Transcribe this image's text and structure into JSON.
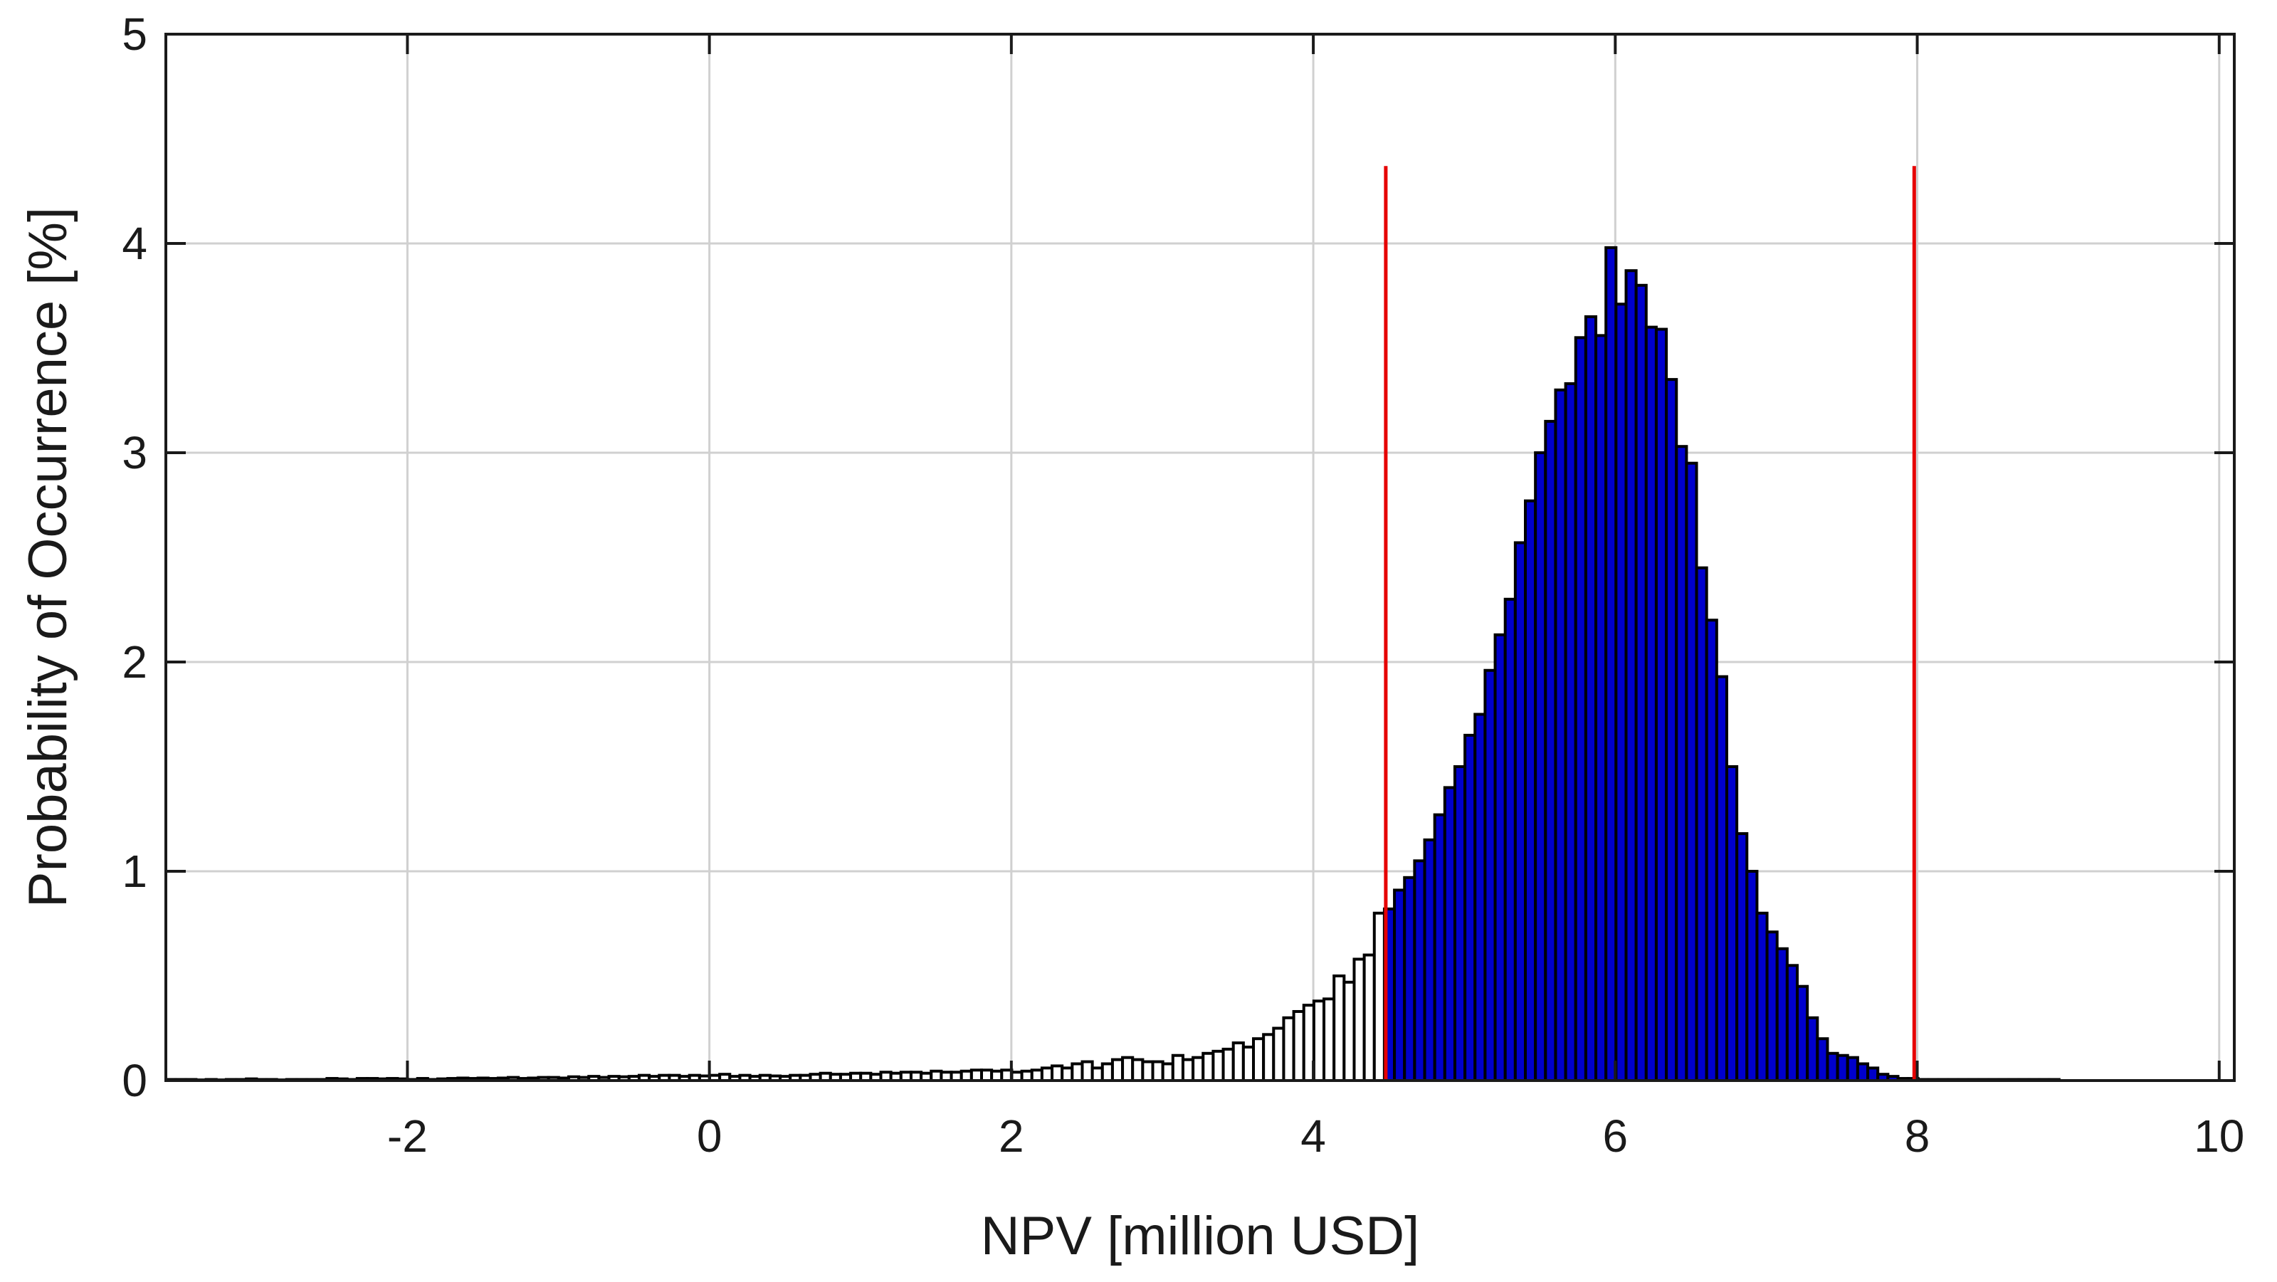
{
  "chart_data": {
    "type": "bar",
    "title": "",
    "xlabel": "NPV [million USD]",
    "ylabel": "Probability of Occurrence [%]",
    "xlim": [
      -3.6,
      10.1
    ],
    "ylim": [
      0,
      5
    ],
    "xticks": [
      "-2",
      "0",
      "2",
      "4",
      "6",
      "8",
      "10"
    ],
    "yticks": [
      "0",
      "1",
      "2",
      "3",
      "4",
      "5"
    ],
    "grid": true,
    "bin_width": 0.0667,
    "bin_start": -3.6,
    "highlight_range": [
      4.48,
      7.98
    ],
    "highlight_color": "#0000cc",
    "base_color": "#ffffff",
    "edge_color": "#000000",
    "marker_color": "#e60000",
    "marker_lines": [
      {
        "x": 4.48,
        "top": 4.37
      },
      {
        "x": 7.98,
        "top": 4.37
      }
    ],
    "values": [
      0.005,
      0.005,
      0.005,
      0.003,
      0.005,
      0.003,
      0.005,
      0.005,
      0.008,
      0.005,
      0.005,
      0.003,
      0.005,
      0.005,
      0.005,
      0.005,
      0.01,
      0.008,
      0.005,
      0.01,
      0.01,
      0.008,
      0.01,
      0.008,
      0.005,
      0.01,
      0.005,
      0.008,
      0.01,
      0.012,
      0.01,
      0.012,
      0.01,
      0.012,
      0.015,
      0.01,
      0.012,
      0.015,
      0.015,
      0.012,
      0.018,
      0.015,
      0.02,
      0.015,
      0.02,
      0.018,
      0.02,
      0.025,
      0.02,
      0.025,
      0.025,
      0.02,
      0.025,
      0.022,
      0.025,
      0.03,
      0.02,
      0.025,
      0.02,
      0.025,
      0.022,
      0.02,
      0.025,
      0.025,
      0.03,
      0.035,
      0.03,
      0.03,
      0.035,
      0.035,
      0.03,
      0.04,
      0.035,
      0.04,
      0.04,
      0.035,
      0.045,
      0.04,
      0.04,
      0.045,
      0.05,
      0.05,
      0.045,
      0.05,
      0.04,
      0.045,
      0.05,
      0.06,
      0.07,
      0.06,
      0.08,
      0.09,
      0.06,
      0.08,
      0.1,
      0.11,
      0.1,
      0.09,
      0.09,
      0.08,
      0.12,
      0.1,
      0.11,
      0.13,
      0.14,
      0.15,
      0.18,
      0.16,
      0.2,
      0.22,
      0.25,
      0.3,
      0.33,
      0.36,
      0.38,
      0.39,
      0.5,
      0.47,
      0.58,
      0.6,
      0.8,
      0.82,
      0.91,
      0.97,
      1.05,
      1.15,
      1.27,
      1.4,
      1.5,
      1.65,
      1.75,
      1.96,
      2.13,
      2.3,
      2.57,
      2.77,
      3.0,
      3.15,
      3.3,
      3.33,
      3.55,
      3.65,
      3.56,
      3.98,
      3.71,
      3.87,
      3.8,
      3.6,
      3.59,
      3.35,
      3.03,
      2.95,
      2.45,
      2.2,
      1.93,
      1.5,
      1.18,
      1.0,
      0.8,
      0.71,
      0.63,
      0.55,
      0.45,
      0.3,
      0.2,
      0.13,
      0.12,
      0.11,
      0.08,
      0.06,
      0.03,
      0.02,
      0.01,
      0.01,
      0.005,
      0.005,
      0.005,
      0.005,
      0.005,
      0.005,
      0.005,
      0.005,
      0.005,
      0.005,
      0.005,
      0.005,
      0.005,
      0.005
    ]
  }
}
